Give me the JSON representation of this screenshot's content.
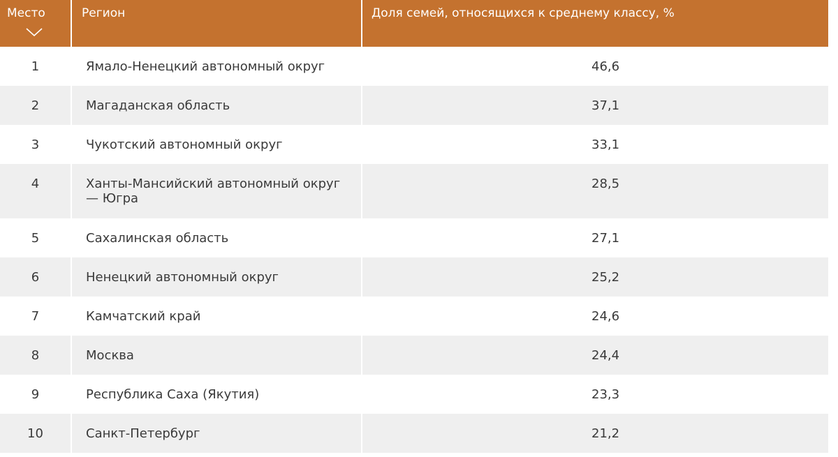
{
  "table": {
    "headers": {
      "place": "Место",
      "region": "Регион",
      "share": "Доля семей, относящихся к среднему классу, %"
    },
    "sort_icon": "chevron-down-icon",
    "rows": [
      {
        "place": "1",
        "region": "Ямало-Ненецкий автономный округ",
        "share": "46,6"
      },
      {
        "place": "2",
        "region": "Магаданская область",
        "share": "37,1"
      },
      {
        "place": "3",
        "region": "Чукотский автономный округ",
        "share": "33,1"
      },
      {
        "place": "4",
        "region": "Ханты-Мансийский автономный округ — Югра",
        "share": "28,5"
      },
      {
        "place": "5",
        "region": "Сахалинская область",
        "share": "27,1"
      },
      {
        "place": "6",
        "region": "Ненецкий автономный округ",
        "share": "25,2"
      },
      {
        "place": "7",
        "region": "Камчатский край",
        "share": "24,6"
      },
      {
        "place": "8",
        "region": "Москва",
        "share": "24,4"
      },
      {
        "place": "9",
        "region": "Республика Саха (Якутия)",
        "share": "23,3"
      },
      {
        "place": "10",
        "region": "Санкт-Петербург",
        "share": "21,2"
      }
    ],
    "colors": {
      "header_bg": "#c4722f",
      "header_text": "#ffffff",
      "alt_row_bg": "#efefef",
      "text": "#3a3a3a"
    }
  }
}
